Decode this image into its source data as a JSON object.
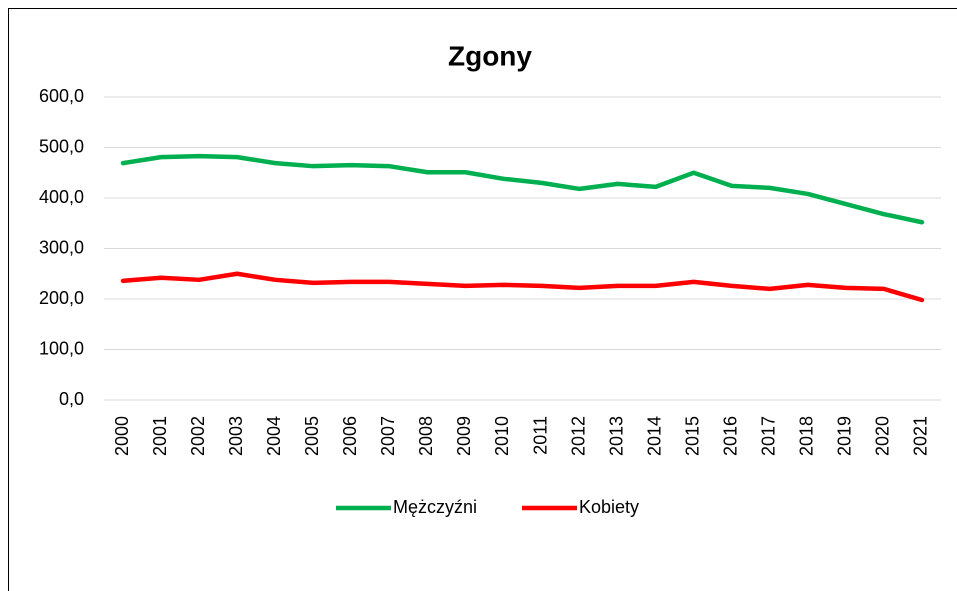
{
  "chart_data": {
    "type": "line",
    "title": "Zgony",
    "categories": [
      "2000",
      "2001",
      "2002",
      "2003",
      "2004",
      "2005",
      "2006",
      "2007",
      "2008",
      "2009",
      "2010",
      "2011",
      "2012",
      "2013",
      "2014",
      "2015",
      "2016",
      "2017",
      "2018",
      "2019",
      "2020",
      "2021"
    ],
    "series": [
      {
        "name": "Mężczyźni",
        "color": "#00b050",
        "values": [
          469,
          481,
          483,
          481,
          469,
          463,
          465,
          463,
          451,
          451,
          438,
          430,
          418,
          428,
          422,
          450,
          424,
          420,
          408,
          388,
          368,
          352
        ]
      },
      {
        "name": "Kobiety",
        "color": "#ff0000",
        "values": [
          236,
          242,
          238,
          250,
          238,
          232,
          234,
          234,
          230,
          226,
          228,
          226,
          222,
          226,
          226,
          234,
          226,
          220,
          228,
          222,
          220,
          198
        ]
      }
    ],
    "ylim": [
      0,
      600
    ],
    "yticks": [
      {
        "value": 0,
        "label": "0,0"
      },
      {
        "value": 100,
        "label": "100,0"
      },
      {
        "value": 200,
        "label": "200,0"
      },
      {
        "value": 300,
        "label": "300,0"
      },
      {
        "value": 400,
        "label": "400,0"
      },
      {
        "value": 500,
        "label": "500,0"
      },
      {
        "value": 600,
        "label": "600,0"
      }
    ],
    "grid": true,
    "legend": "bottom"
  }
}
